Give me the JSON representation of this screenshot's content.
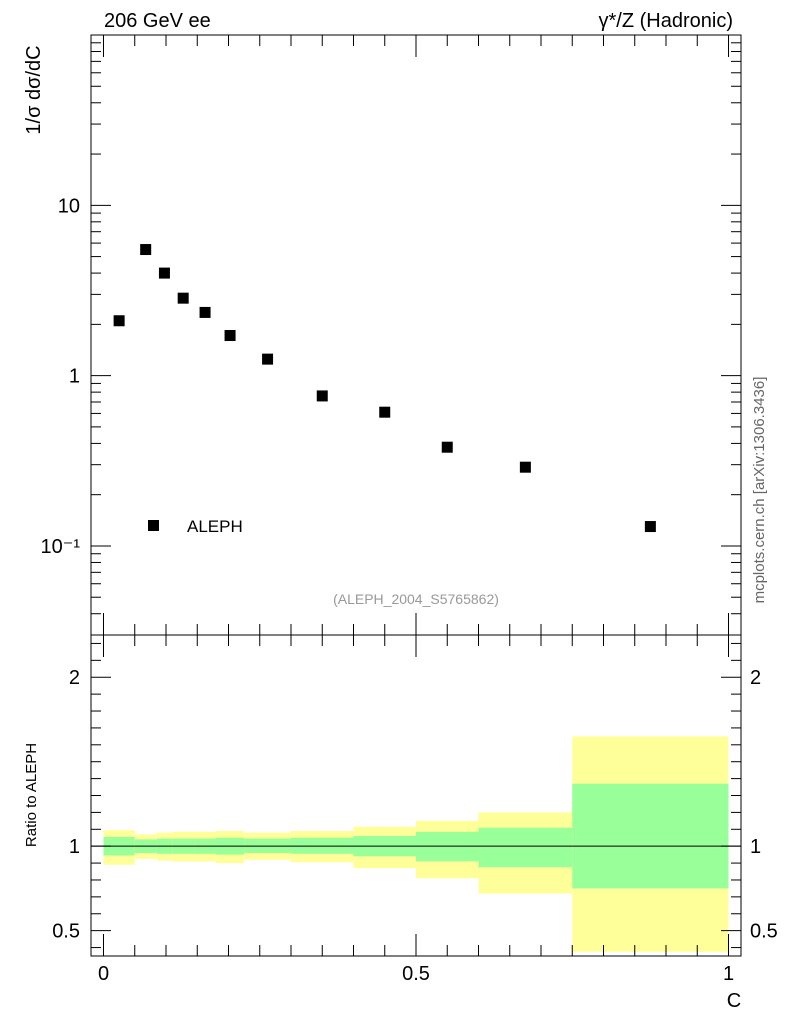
{
  "header": {
    "left_title": "206 GeV ee",
    "right_title": "γ*/Z (Hadronic)"
  },
  "watermark": "mcplots.cern.ch [arXiv:1306.3436]",
  "analysis_label": "(ALEPH_2004_S5765862)",
  "chart_data": [
    {
      "type": "scatter",
      "ylabel": "1/σ  dσ/dC",
      "yscale": "log",
      "ylim": [
        0.03,
        100
      ],
      "xlim": [
        -0.02,
        1.02
      ],
      "y_tick_labels": [
        "10",
        "1",
        "10⁻¹"
      ],
      "y_tick_values": [
        10,
        1,
        0.1
      ],
      "legend": {
        "entry": "ALEPH",
        "placement": "bottom-left",
        "color": "#000000"
      },
      "series": [
        {
          "name": "ALEPH",
          "x": [
            0.025,
            0.0675,
            0.0975,
            0.1275,
            0.1625,
            0.2025,
            0.2625,
            0.35,
            0.45,
            0.55,
            0.675,
            0.875
          ],
          "y": [
            2.1,
            5.5,
            4.0,
            2.85,
            2.35,
            1.72,
            1.25,
            0.76,
            0.61,
            0.38,
            0.29,
            0.13
          ]
        }
      ]
    },
    {
      "type": "area",
      "ylabel": "Ratio to ALEPH",
      "xlabel": "C",
      "xlim": [
        -0.02,
        1.02
      ],
      "ylim": [
        0.35,
        2.25
      ],
      "x_tick_labels": [
        "0",
        "0.5",
        "1"
      ],
      "x_tick_values": [
        0,
        0.5,
        1
      ],
      "y_tick_labels": [
        "2",
        "1",
        "0.5"
      ],
      "y_tick_values": [
        2,
        1,
        0.5
      ],
      "band_colors": {
        "inner": "#99ff99",
        "outer": "#ffff99"
      },
      "bins": [
        {
          "lo": 0.0,
          "hi": 0.05,
          "inner": [
            0.945,
            1.055
          ],
          "outer": [
            0.89,
            1.095
          ]
        },
        {
          "lo": 0.05,
          "hi": 0.085,
          "inner": [
            0.96,
            1.04
          ],
          "outer": [
            0.925,
            1.07
          ]
        },
        {
          "lo": 0.085,
          "hi": 0.11,
          "inner": [
            0.955,
            1.045
          ],
          "outer": [
            0.915,
            1.08
          ]
        },
        {
          "lo": 0.11,
          "hi": 0.145,
          "inner": [
            0.955,
            1.045
          ],
          "outer": [
            0.91,
            1.085
          ]
        },
        {
          "lo": 0.145,
          "hi": 0.18,
          "inner": [
            0.955,
            1.045
          ],
          "outer": [
            0.91,
            1.085
          ]
        },
        {
          "lo": 0.18,
          "hi": 0.225,
          "inner": [
            0.95,
            1.05
          ],
          "outer": [
            0.9,
            1.09
          ]
        },
        {
          "lo": 0.225,
          "hi": 0.3,
          "inner": [
            0.96,
            1.045
          ],
          "outer": [
            0.92,
            1.08
          ]
        },
        {
          "lo": 0.3,
          "hi": 0.4,
          "inner": [
            0.955,
            1.05
          ],
          "outer": [
            0.905,
            1.09
          ]
        },
        {
          "lo": 0.4,
          "hi": 0.5,
          "inner": [
            0.94,
            1.06
          ],
          "outer": [
            0.87,
            1.115
          ]
        },
        {
          "lo": 0.5,
          "hi": 0.6,
          "inner": [
            0.91,
            1.085
          ],
          "outer": [
            0.81,
            1.15
          ]
        },
        {
          "lo": 0.6,
          "hi": 0.75,
          "inner": [
            0.875,
            1.11
          ],
          "outer": [
            0.72,
            1.2
          ]
        },
        {
          "lo": 0.75,
          "hi": 1.0,
          "inner": [
            0.75,
            1.37
          ],
          "outer": [
            0.375,
            1.65
          ]
        }
      ]
    }
  ]
}
